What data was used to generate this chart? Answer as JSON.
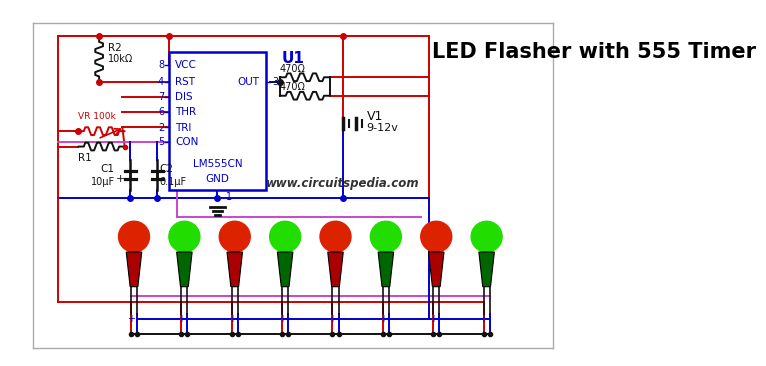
{
  "title": "LED Flasher with 555 Timer",
  "website": "www.circuitspedia.com",
  "background_color": "#ffffff",
  "title_fontsize": 15,
  "ic_label": "U1",
  "ic_model": "LM555CN",
  "ic_pins_left": [
    "VCC",
    "RST",
    "DIS",
    "THR",
    "TRI",
    "CON",
    "GND"
  ],
  "ic_pin_numbers_left": [
    "8",
    "4",
    "7",
    "6",
    "2",
    "5",
    ""
  ],
  "ic_pin_right": "OUT",
  "ic_pin_number_right": "3",
  "ic_pin_number_bottom": "1",
  "resistor_r2": "R2",
  "resistor_r2_val": "10kΩ",
  "resistor_vr": "VR 100k",
  "resistor_r1": "R1",
  "resistor_470_1": "470Ω",
  "resistor_470_2": "470Ω",
  "cap_c1": "C1",
  "cap_c1_val": "10μF",
  "cap_c2": "C2",
  "cap_c2_val": "0.1μF",
  "battery_label": "V1",
  "battery_voltage": "9-12v",
  "led_colors": [
    "red",
    "green",
    "red",
    "green",
    "red",
    "green",
    "red",
    "green"
  ],
  "num_leds": 8,
  "wire_red": "#cc0000",
  "wire_blue": "#0000cc",
  "wire_pink": "#cc44cc",
  "wire_black": "#111111",
  "ic_box_color": "#0000cc",
  "outer_box_color": "#cc0000",
  "gray_box_color": "#aaaaaa"
}
